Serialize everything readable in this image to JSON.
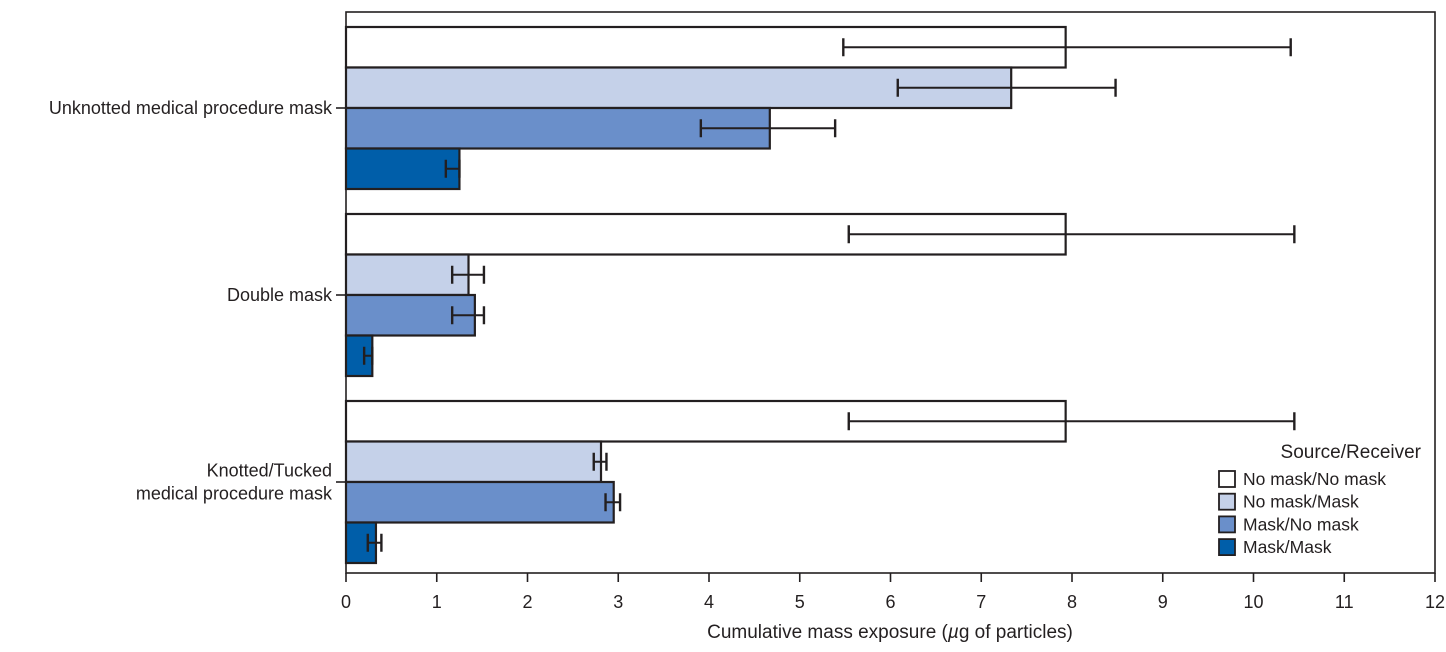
{
  "chart_data": {
    "type": "bar",
    "orientation": "horizontal",
    "categories": [
      "Unknotted medical procedure mask",
      "Double mask",
      "Knotted/Tucked medical procedure mask"
    ],
    "category_label_lines": [
      [
        "Unknotted medical procedure mask"
      ],
      [
        "Double mask"
      ],
      [
        "Knotted/Tucked",
        "medical procedure mask"
      ]
    ],
    "series": [
      {
        "name": "No mask/No mask",
        "color": "#ffffff",
        "values": [
          7.93,
          7.93,
          7.93
        ],
        "error": [
          [
            5.48,
            10.41
          ],
          [
            5.54,
            10.45
          ],
          [
            5.54,
            10.45
          ]
        ]
      },
      {
        "name": "No mask/Mask",
        "color": "#c5d1e9",
        "values": [
          7.33,
          1.35,
          2.81
        ],
        "error": [
          [
            6.08,
            8.48
          ],
          [
            1.17,
            1.52
          ],
          [
            2.73,
            2.87
          ]
        ]
      },
      {
        "name": "Mask/No mask",
        "color": "#6a8fca",
        "values": [
          4.67,
          1.42,
          2.95
        ],
        "error": [
          [
            3.91,
            5.39
          ],
          [
            1.17,
            1.52
          ],
          [
            2.86,
            3.02
          ]
        ]
      },
      {
        "name": "Mask/Mask",
        "color": "#005ea9",
        "values": [
          1.25,
          0.29,
          0.33
        ],
        "error": [
          [
            1.1,
            1.25
          ],
          [
            0.2,
            0.29
          ],
          [
            0.24,
            0.39
          ]
        ]
      }
    ],
    "xlabel_prefix": "Cumulative mass exposure (",
    "xlabel_symbol": "µ",
    "xlabel_suffix": "g of particles)",
    "xlim": [
      0,
      12
    ],
    "xticks": [
      "0",
      "1",
      "2",
      "3",
      "4",
      "5",
      "6",
      "7",
      "8",
      "9",
      "10",
      "11",
      "12"
    ],
    "legend_title": "Source/Receiver",
    "legend_position": "bottom-right",
    "grid": false
  }
}
